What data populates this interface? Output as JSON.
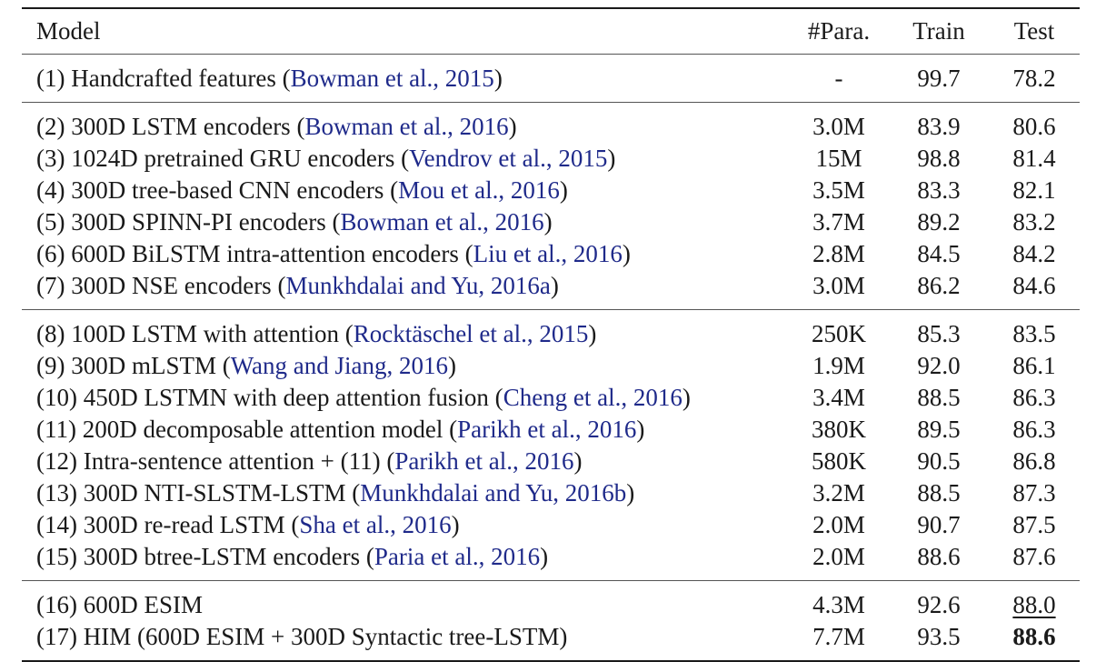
{
  "headers": {
    "model": "Model",
    "params": "#Para.",
    "train": "Train",
    "test": "Test"
  },
  "groups": [
    [
      {
        "prefix": "(1) Handcrafted features (",
        "cite": "Bowman et al., 2015",
        "suffix": ")",
        "params": "-",
        "train": "99.7",
        "test": "78.2"
      }
    ],
    [
      {
        "prefix": "(2) 300D LSTM encoders (",
        "cite": "Bowman et al., 2016",
        "suffix": ")",
        "params": "3.0M",
        "train": "83.9",
        "test": "80.6"
      },
      {
        "prefix": "(3) 1024D pretrained GRU encoders (",
        "cite": "Vendrov et al., 2015",
        "suffix": ")",
        "params": "15M",
        "train": "98.8",
        "test": "81.4"
      },
      {
        "prefix": "(4) 300D tree-based CNN encoders (",
        "cite": "Mou et al., 2016",
        "suffix": ")",
        "params": "3.5M",
        "train": "83.3",
        "test": "82.1"
      },
      {
        "prefix": "(5) 300D SPINN-PI encoders (",
        "cite": "Bowman et al., 2016",
        "suffix": ")",
        "params": "3.7M",
        "train": "89.2",
        "test": "83.2"
      },
      {
        "prefix": "(6) 600D BiLSTM intra-attention encoders (",
        "cite": "Liu et al., 2016",
        "suffix": ")",
        "params": "2.8M",
        "train": "84.5",
        "test": "84.2"
      },
      {
        "prefix": "(7) 300D NSE encoders (",
        "cite": "Munkhdalai and Yu, 2016a",
        "suffix": ")",
        "params": "3.0M",
        "train": "86.2",
        "test": "84.6"
      }
    ],
    [
      {
        "prefix": "(8) 100D LSTM with attention (",
        "cite": "Rocktäschel et al., 2015",
        "suffix": ")",
        "params": "250K",
        "train": "85.3",
        "test": "83.5"
      },
      {
        "prefix": "(9) 300D mLSTM (",
        "cite": "Wang and Jiang, 2016",
        "suffix": ")",
        "params": "1.9M",
        "train": "92.0",
        "test": "86.1"
      },
      {
        "prefix": "(10) 450D LSTMN with deep attention fusion (",
        "cite": "Cheng et al., 2016",
        "suffix": ")",
        "params": "3.4M",
        "train": "88.5",
        "test": "86.3"
      },
      {
        "prefix": "(11) 200D decomposable attention model (",
        "cite": "Parikh et al., 2016",
        "suffix": ")",
        "params": "380K",
        "train": "89.5",
        "test": "86.3"
      },
      {
        "prefix": "(12) Intra-sentence attention + (11) (",
        "cite": "Parikh et al., 2016",
        "suffix": ")",
        "params": "580K",
        "train": "90.5",
        "test": "86.8"
      },
      {
        "prefix": "(13) 300D NTI-SLSTM-LSTM (",
        "cite": "Munkhdalai and Yu, 2016b",
        "suffix": ")",
        "params": "3.2M",
        "train": "88.5",
        "test": "87.3"
      },
      {
        "prefix": "(14) 300D re-read LSTM (",
        "cite": "Sha et al., 2016",
        "suffix": ")",
        "params": "2.0M",
        "train": "90.7",
        "test": "87.5"
      },
      {
        "prefix": "(15) 300D btree-LSTM encoders (",
        "cite": "Paria et al., 2016",
        "suffix": ")",
        "params": "2.0M",
        "train": "88.6",
        "test": "87.6"
      }
    ],
    [
      {
        "prefix": "(16) 600D ESIM",
        "cite": "",
        "suffix": "",
        "params": "4.3M",
        "train": "92.6",
        "test": "88.0",
        "test_style": "underline"
      },
      {
        "prefix": "(17) HIM (600D ESIM + 300D Syntactic tree-LSTM)",
        "cite": "",
        "suffix": "",
        "params": "7.7M",
        "train": "93.5",
        "test": "88.6",
        "test_style": "bold"
      }
    ]
  ]
}
